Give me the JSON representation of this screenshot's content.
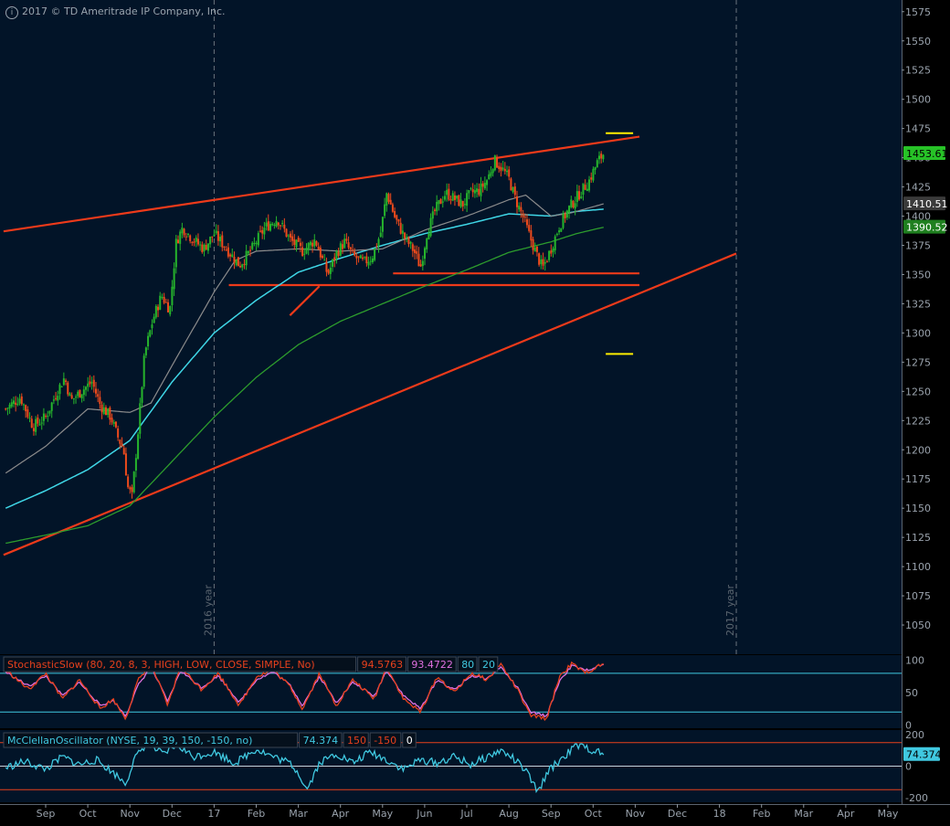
{
  "copyright": "2017 © TD Ameritrade IP Company, Inc.",
  "price_panel": {
    "y_ticks": [
      1575,
      1550,
      1525,
      1500,
      1475,
      1450,
      1425,
      1400,
      1375,
      1350,
      1325,
      1300,
      1275,
      1250,
      1225,
      1200,
      1175,
      1150,
      1125,
      1100,
      1075,
      1050
    ],
    "y_range": [
      1025,
      1585
    ],
    "year_markers": [
      {
        "label": "2016 year",
        "month_index": 4
      },
      {
        "label": "2017 year",
        "month_index": 16.4
      }
    ],
    "badges": [
      {
        "label": "1453.61",
        "value": 1453.61,
        "color": "#27c227",
        "text_color": "#000000"
      },
      {
        "label": "1410.51",
        "value": 1410.51,
        "color": "#3a3a3a",
        "text_color": "#ffffff"
      },
      {
        "label": "1390.52",
        "value": 1390.52,
        "color": "#1f7f1f",
        "text_color": "#ffffff"
      }
    ]
  },
  "stochastic_panel": {
    "legend": [
      {
        "text": "StochasticSlow (80, 20, 8, 3, HIGH, LOW, CLOSE, SIMPLE, No)",
        "color": "#e8401c"
      },
      {
        "text": "94.5763",
        "color": "#e8401c"
      },
      {
        "text": "93.4722",
        "color": "#e070e0"
      },
      {
        "text": "80",
        "color": "#40c8e0"
      },
      {
        "text": "20",
        "color": "#40c8e0"
      }
    ],
    "y_ticks": [
      100,
      50,
      0
    ],
    "y_range": [
      -5,
      108
    ],
    "levels": [
      80,
      20
    ]
  },
  "mcclellan_panel": {
    "legend": [
      {
        "text": "McClellanOscillator (NYSE, 19, 39, 150, -150, no)",
        "color": "#40c8e0"
      },
      {
        "text": "74.374",
        "color": "#40c8e0"
      },
      {
        "text": "150",
        "color": "#e8401c"
      },
      {
        "text": "-150",
        "color": "#e8401c"
      },
      {
        "text": "0",
        "color": "#ffffff"
      }
    ],
    "y_ticks": [
      200,
      0,
      -200
    ],
    "y_range": [
      -230,
      230
    ],
    "levels": [
      150,
      0,
      -150
    ],
    "badge": {
      "label": "74.374",
      "value": 74.374,
      "color": "#40c8e0",
      "text_color": "#000000"
    }
  },
  "x_axis": {
    "labels": [
      {
        "label": "Sep",
        "month_index": 0
      },
      {
        "label": "Oct",
        "month_index": 1
      },
      {
        "label": "Nov",
        "month_index": 2
      },
      {
        "label": "Dec",
        "month_index": 3
      },
      {
        "label": "17",
        "month_index": 4
      },
      {
        "label": "Feb",
        "month_index": 5
      },
      {
        "label": "Mar",
        "month_index": 6
      },
      {
        "label": "Apr",
        "month_index": 7
      },
      {
        "label": "May",
        "month_index": 8
      },
      {
        "label": "Jun",
        "month_index": 9
      },
      {
        "label": "Jul",
        "month_index": 10
      },
      {
        "label": "Aug",
        "month_index": 11
      },
      {
        "label": "Sep",
        "month_index": 12
      },
      {
        "label": "Oct",
        "month_index": 13
      },
      {
        "label": "Nov",
        "month_index": 14
      },
      {
        "label": "Dec",
        "month_index": 15
      },
      {
        "label": "18",
        "month_index": 16
      },
      {
        "label": "Feb",
        "month_index": 17
      },
      {
        "label": "Mar",
        "month_index": 18
      },
      {
        "label": "Apr",
        "month_index": 19
      },
      {
        "label": "May",
        "month_index": 20
      }
    ]
  },
  "colors": {
    "background": "#021428",
    "up_candle": "#26b52c",
    "down_candle": "#ee4a1c",
    "trendline": "#ee3a1a",
    "target_marker": "#ffee00",
    "sma_grey": "#8c8c8c",
    "sma_cyan": "#3fd6e6",
    "sma_green": "#2d9c2d",
    "stoch_k": "#e8401c",
    "stoch_d": "#e070e0",
    "level_line": "#40c8e0",
    "mcclellan": "#40c8e0"
  },
  "chart_data": {
    "type": "candlestick",
    "x_unit": "months since the first tick (Sep)",
    "ohlc_anchors": [
      [
        -0.95,
        1235
      ],
      [
        -0.6,
        1245
      ],
      [
        -0.3,
        1220
      ],
      [
        0.0,
        1228
      ],
      [
        0.3,
        1252
      ],
      [
        0.45,
        1262
      ],
      [
        0.6,
        1242
      ],
      [
        0.9,
        1252
      ],
      [
        1.1,
        1258
      ],
      [
        1.3,
        1238
      ],
      [
        1.55,
        1228
      ],
      [
        1.7,
        1212
      ],
      [
        1.85,
        1200
      ],
      [
        1.95,
        1168
      ],
      [
        2.05,
        1160
      ],
      [
        2.18,
        1210
      ],
      [
        2.35,
        1282
      ],
      [
        2.55,
        1312
      ],
      [
        2.75,
        1332
      ],
      [
        2.95,
        1320
      ],
      [
        3.1,
        1378
      ],
      [
        3.25,
        1390
      ],
      [
        3.5,
        1380
      ],
      [
        3.75,
        1372
      ],
      [
        4.0,
        1385
      ],
      [
        4.3,
        1372
      ],
      [
        4.6,
        1358
      ],
      [
        4.9,
        1372
      ],
      [
        5.2,
        1390
      ],
      [
        5.5,
        1398
      ],
      [
        5.8,
        1380
      ],
      [
        6.1,
        1370
      ],
      [
        6.4,
        1380
      ],
      [
        6.7,
        1350
      ],
      [
        6.9,
        1368
      ],
      [
        7.1,
        1378
      ],
      [
        7.3,
        1366
      ],
      [
        7.55,
        1360
      ],
      [
        7.75,
        1365
      ],
      [
        7.95,
        1385
      ],
      [
        8.1,
        1420
      ],
      [
        8.3,
        1398
      ],
      [
        8.55,
        1380
      ],
      [
        8.75,
        1370
      ],
      [
        8.9,
        1356
      ],
      [
        9.05,
        1385
      ],
      [
        9.25,
        1405
      ],
      [
        9.5,
        1420
      ],
      [
        9.7,
        1415
      ],
      [
        9.9,
        1410
      ],
      [
        10.1,
        1420
      ],
      [
        10.3,
        1422
      ],
      [
        10.5,
        1432
      ],
      [
        10.65,
        1448
      ],
      [
        10.85,
        1440
      ],
      [
        11.0,
        1432
      ],
      [
        11.15,
        1415
      ],
      [
        11.35,
        1398
      ],
      [
        11.5,
        1382
      ],
      [
        11.65,
        1368
      ],
      [
        11.8,
        1355
      ],
      [
        12.0,
        1372
      ],
      [
        12.2,
        1392
      ],
      [
        12.45,
        1408
      ],
      [
        12.65,
        1418
      ],
      [
        12.9,
        1430
      ],
      [
        13.1,
        1446
      ],
      [
        13.25,
        1453.61
      ]
    ],
    "sma_grey_anchors": [
      [
        -0.95,
        1180
      ],
      [
        0.0,
        1203
      ],
      [
        1.0,
        1235
      ],
      [
        2.0,
        1232
      ],
      [
        2.5,
        1240
      ],
      [
        3.0,
        1272
      ],
      [
        4.0,
        1335
      ],
      [
        4.5,
        1362
      ],
      [
        5.0,
        1370
      ],
      [
        6.0,
        1372
      ],
      [
        7.0,
        1370
      ],
      [
        8.0,
        1372
      ],
      [
        9.0,
        1388
      ],
      [
        10.0,
        1400
      ],
      [
        11.0,
        1414
      ],
      [
        11.4,
        1418
      ],
      [
        12.0,
        1400
      ],
      [
        12.5,
        1403
      ],
      [
        13.25,
        1410.51
      ]
    ],
    "sma_cyan_anchors": [
      [
        -0.95,
        1150
      ],
      [
        0.0,
        1165
      ],
      [
        1.0,
        1183
      ],
      [
        2.0,
        1208
      ],
      [
        3.0,
        1258
      ],
      [
        4.0,
        1300
      ],
      [
        5.0,
        1328
      ],
      [
        6.0,
        1352
      ],
      [
        7.0,
        1364
      ],
      [
        8.0,
        1375
      ],
      [
        9.0,
        1385
      ],
      [
        10.0,
        1393
      ],
      [
        11.0,
        1402
      ],
      [
        12.0,
        1400
      ],
      [
        12.6,
        1404
      ],
      [
        13.25,
        1406
      ]
    ],
    "sma_green_anchors": [
      [
        -0.95,
        1120
      ],
      [
        0.0,
        1127
      ],
      [
        1.0,
        1135
      ],
      [
        2.0,
        1152
      ],
      [
        3.0,
        1190
      ],
      [
        4.0,
        1228
      ],
      [
        5.0,
        1262
      ],
      [
        6.0,
        1290
      ],
      [
        7.0,
        1310
      ],
      [
        8.0,
        1325
      ],
      [
        9.0,
        1340
      ],
      [
        10.0,
        1354
      ],
      [
        11.0,
        1369
      ],
      [
        12.0,
        1378
      ],
      [
        12.6,
        1385
      ],
      [
        13.25,
        1390.52
      ]
    ],
    "trendlines": [
      {
        "name": "upper channel",
        "from": [
          -1.0,
          1387
        ],
        "to": [
          14.1,
          1468
        ]
      },
      {
        "name": "lower channel",
        "from": [
          -1.0,
          1110
        ],
        "to": [
          16.4,
          1368
        ]
      },
      {
        "name": "support 1",
        "from": [
          4.35,
          1341
        ],
        "to": [
          14.1,
          1341
        ]
      },
      {
        "name": "support 2",
        "from": [
          8.25,
          1351
        ],
        "to": [
          14.1,
          1351
        ]
      },
      {
        "name": "short segment",
        "from": [
          5.8,
          1315
        ],
        "to": [
          6.5,
          1340
        ]
      }
    ],
    "target_markers": [
      {
        "from": [
          13.3,
          1471
        ],
        "to": [
          13.95,
          1471
        ]
      },
      {
        "from": [
          13.3,
          1282
        ],
        "to": [
          13.95,
          1282
        ]
      }
    ],
    "stochastic_k_anchors": [
      [
        -0.95,
        85
      ],
      [
        -0.4,
        55
      ],
      [
        0.0,
        80
      ],
      [
        0.4,
        40
      ],
      [
        0.8,
        70
      ],
      [
        1.3,
        25
      ],
      [
        1.6,
        40
      ],
      [
        1.9,
        10
      ],
      [
        2.2,
        70
      ],
      [
        2.5,
        95
      ],
      [
        2.9,
        30
      ],
      [
        3.2,
        90
      ],
      [
        3.7,
        55
      ],
      [
        4.1,
        80
      ],
      [
        4.6,
        30
      ],
      [
        5.0,
        75
      ],
      [
        5.4,
        85
      ],
      [
        5.8,
        60
      ],
      [
        6.1,
        25
      ],
      [
        6.5,
        80
      ],
      [
        6.9,
        30
      ],
      [
        7.3,
        70
      ],
      [
        7.8,
        40
      ],
      [
        8.1,
        90
      ],
      [
        8.5,
        40
      ],
      [
        8.9,
        20
      ],
      [
        9.3,
        75
      ],
      [
        9.7,
        50
      ],
      [
        10.1,
        80
      ],
      [
        10.5,
        70
      ],
      [
        10.8,
        95
      ],
      [
        11.2,
        55
      ],
      [
        11.5,
        15
      ],
      [
        11.9,
        10
      ],
      [
        12.2,
        75
      ],
      [
        12.5,
        95
      ],
      [
        12.8,
        80
      ],
      [
        13.25,
        94.5763
      ]
    ],
    "stochastic_d_anchors": [
      [
        -0.95,
        82
      ],
      [
        -0.4,
        60
      ],
      [
        0.0,
        76
      ],
      [
        0.4,
        45
      ],
      [
        0.8,
        66
      ],
      [
        1.3,
        30
      ],
      [
        1.6,
        38
      ],
      [
        1.9,
        14
      ],
      [
        2.2,
        62
      ],
      [
        2.5,
        90
      ],
      [
        2.9,
        36
      ],
      [
        3.2,
        84
      ],
      [
        3.7,
        58
      ],
      [
        4.1,
        76
      ],
      [
        4.6,
        35
      ],
      [
        5.0,
        70
      ],
      [
        5.4,
        82
      ],
      [
        5.8,
        62
      ],
      [
        6.1,
        30
      ],
      [
        6.5,
        75
      ],
      [
        6.9,
        35
      ],
      [
        7.3,
        66
      ],
      [
        7.8,
        44
      ],
      [
        8.1,
        85
      ],
      [
        8.5,
        45
      ],
      [
        8.9,
        25
      ],
      [
        9.3,
        70
      ],
      [
        9.7,
        54
      ],
      [
        10.1,
        76
      ],
      [
        10.5,
        72
      ],
      [
        10.8,
        90
      ],
      [
        11.2,
        58
      ],
      [
        11.5,
        20
      ],
      [
        11.9,
        14
      ],
      [
        12.2,
        68
      ],
      [
        12.5,
        92
      ],
      [
        12.8,
        84
      ],
      [
        13.25,
        93.4722
      ]
    ],
    "mcclellan_anchors": [
      [
        -0.95,
        -10
      ],
      [
        -0.5,
        30
      ],
      [
        0.0,
        -20
      ],
      [
        0.4,
        60
      ],
      [
        0.8,
        10
      ],
      [
        1.2,
        40
      ],
      [
        1.6,
        -40
      ],
      [
        1.9,
        -110
      ],
      [
        2.1,
        40
      ],
      [
        2.4,
        150
      ],
      [
        2.8,
        70
      ],
      [
        3.1,
        140
      ],
      [
        3.5,
        60
      ],
      [
        4.0,
        90
      ],
      [
        4.5,
        20
      ],
      [
        5.0,
        110
      ],
      [
        5.4,
        60
      ],
      [
        5.8,
        20
      ],
      [
        6.0,
        -40
      ],
      [
        6.2,
        -150
      ],
      [
        6.5,
        20
      ],
      [
        6.9,
        80
      ],
      [
        7.3,
        20
      ],
      [
        7.7,
        90
      ],
      [
        8.1,
        40
      ],
      [
        8.5,
        -20
      ],
      [
        8.9,
        40
      ],
      [
        9.3,
        20
      ],
      [
        9.7,
        60
      ],
      [
        10.1,
        10
      ],
      [
        10.5,
        60
      ],
      [
        10.8,
        100
      ],
      [
        11.1,
        50
      ],
      [
        11.4,
        -30
      ],
      [
        11.7,
        -170
      ],
      [
        11.9,
        -40
      ],
      [
        12.3,
        60
      ],
      [
        12.6,
        130
      ],
      [
        12.9,
        110
      ],
      [
        13.25,
        74.374
      ]
    ]
  }
}
